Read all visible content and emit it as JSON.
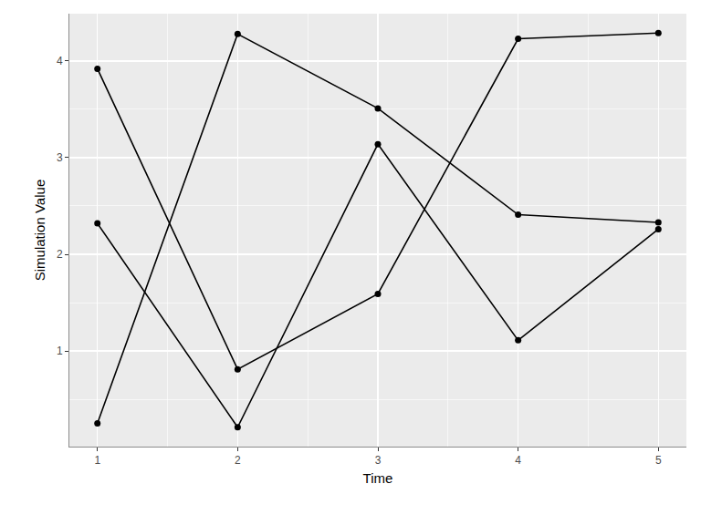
{
  "chart_data": {
    "type": "line",
    "x_label": "Time",
    "y_label": "Simulation Value",
    "x": [
      1,
      2,
      3,
      4,
      5
    ],
    "series": [
      {
        "color": "#000000",
        "values": [
          3.92,
          0.81,
          1.59,
          4.23,
          4.29
        ]
      },
      {
        "color": "#000000",
        "values": [
          2.32,
          0.21,
          3.14,
          1.11,
          2.26
        ]
      },
      {
        "color": "#000000",
        "values": [
          0.25,
          4.28,
          3.51,
          2.41,
          2.33
        ]
      }
    ],
    "xlim": [
      0.8,
      5.2
    ],
    "xticks": [
      1,
      2,
      3,
      4,
      5
    ],
    "ylim": [
      0.01,
      4.49
    ],
    "yticks": [
      1,
      2,
      3,
      4
    ],
    "grid": true,
    "marker": "circle",
    "line_style": "solid"
  }
}
